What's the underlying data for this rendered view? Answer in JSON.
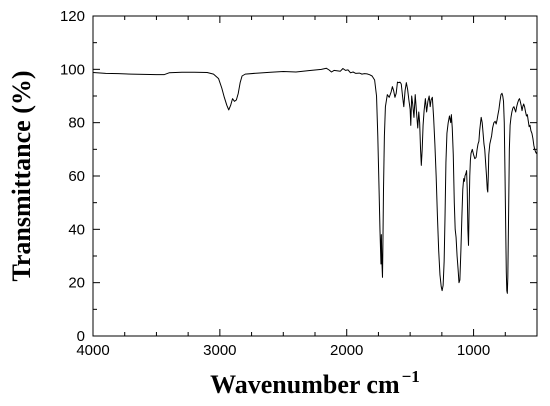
{
  "chart_data": {
    "type": "line",
    "title": "",
    "xlabel": "Wavenumber cm",
    "xlabel_superscript": "−1",
    "ylabel": "Transmittance (%)",
    "xlim": [
      4000,
      500
    ],
    "ylim": [
      0,
      120
    ],
    "x_reversed": true,
    "x_ticks": [
      4000,
      3000,
      2000,
      1000
    ],
    "x_tick_labels": [
      "4000",
      "3000",
      "2000",
      "1000"
    ],
    "x_minor_step": 250,
    "y_ticks": [
      0,
      20,
      40,
      60,
      80,
      100,
      120
    ],
    "y_tick_labels": [
      "0",
      "20",
      "40",
      "60",
      "80",
      "100",
      "120"
    ],
    "y_minor_step": 10,
    "grid": false,
    "legend": "none",
    "line_color": "#000000",
    "series": [
      {
        "points": [
          [
            4000,
            98.8
          ],
          [
            3900,
            98.5
          ],
          [
            3800,
            98.4
          ],
          [
            3700,
            98.2
          ],
          [
            3600,
            98.1
          ],
          [
            3500,
            98.0
          ],
          [
            3440,
            98.0
          ],
          [
            3400,
            98.7
          ],
          [
            3300,
            98.9
          ],
          [
            3200,
            98.9
          ],
          [
            3100,
            98.8
          ],
          [
            3050,
            98.2
          ],
          [
            3010,
            96.5
          ],
          [
            2985,
            93.0
          ],
          [
            2965,
            89.5
          ],
          [
            2945,
            86.5
          ],
          [
            2930,
            84.8
          ],
          [
            2915,
            86.5
          ],
          [
            2900,
            89.0
          ],
          [
            2885,
            88.0
          ],
          [
            2870,
            88.5
          ],
          [
            2855,
            91.0
          ],
          [
            2840,
            95.0
          ],
          [
            2825,
            97.5
          ],
          [
            2800,
            98.2
          ],
          [
            2700,
            98.6
          ],
          [
            2600,
            98.9
          ],
          [
            2500,
            99.2
          ],
          [
            2400,
            99.0
          ],
          [
            2300,
            99.5
          ],
          [
            2200,
            100.0
          ],
          [
            2160,
            100.4
          ],
          [
            2140,
            99.8
          ],
          [
            2120,
            99.0
          ],
          [
            2100,
            99.6
          ],
          [
            2050,
            99.3
          ],
          [
            2030,
            100.3
          ],
          [
            2010,
            99.6
          ],
          [
            1990,
            99.8
          ],
          [
            1970,
            98.7
          ],
          [
            1950,
            99.0
          ],
          [
            1930,
            98.5
          ],
          [
            1900,
            98.6
          ],
          [
            1880,
            98.2
          ],
          [
            1860,
            98.4
          ],
          [
            1840,
            98.3
          ],
          [
            1820,
            98.0
          ],
          [
            1800,
            97.5
          ],
          [
            1780,
            96.0
          ],
          [
            1765,
            90.0
          ],
          [
            1755,
            75.0
          ],
          [
            1745,
            55.0
          ],
          [
            1738,
            40.0
          ],
          [
            1730,
            27.0
          ],
          [
            1727,
            38.0
          ],
          [
            1722,
            27.0
          ],
          [
            1718,
            22.0
          ],
          [
            1715,
            33.0
          ],
          [
            1710,
            55.0
          ],
          [
            1703,
            75.0
          ],
          [
            1695,
            86.0
          ],
          [
            1680,
            90.5
          ],
          [
            1665,
            89.5
          ],
          [
            1650,
            91.5
          ],
          [
            1640,
            93.5
          ],
          [
            1630,
            92.0
          ],
          [
            1620,
            89.5
          ],
          [
            1610,
            91.0
          ],
          [
            1600,
            95.2
          ],
          [
            1590,
            95.0
          ],
          [
            1580,
            95.2
          ],
          [
            1570,
            94.5
          ],
          [
            1560,
            90.0
          ],
          [
            1550,
            86.0
          ],
          [
            1540,
            92.0
          ],
          [
            1530,
            95.0
          ],
          [
            1520,
            92.5
          ],
          [
            1510,
            88.5
          ],
          [
            1500,
            85.0
          ],
          [
            1495,
            79.0
          ],
          [
            1488,
            90.0
          ],
          [
            1480,
            87.0
          ],
          [
            1470,
            82.0
          ],
          [
            1460,
            90.5
          ],
          [
            1450,
            84.0
          ],
          [
            1440,
            78.0
          ],
          [
            1432,
            84.0
          ],
          [
            1425,
            80.0
          ],
          [
            1418,
            70.0
          ],
          [
            1412,
            64.0
          ],
          [
            1405,
            70.0
          ],
          [
            1398,
            79.0
          ],
          [
            1390,
            84.5
          ],
          [
            1380,
            89.0
          ],
          [
            1370,
            84.0
          ],
          [
            1360,
            88.0
          ],
          [
            1350,
            90.0
          ],
          [
            1342,
            86.0
          ],
          [
            1335,
            88.5
          ],
          [
            1325,
            89.5
          ],
          [
            1315,
            82.0
          ],
          [
            1305,
            72.0
          ],
          [
            1295,
            60.0
          ],
          [
            1285,
            45.0
          ],
          [
            1275,
            32.0
          ],
          [
            1265,
            23.0
          ],
          [
            1255,
            18.5
          ],
          [
            1248,
            17.0
          ],
          [
            1240,
            19.0
          ],
          [
            1232,
            28.0
          ],
          [
            1225,
            45.0
          ],
          [
            1218,
            65.0
          ],
          [
            1210,
            76.0
          ],
          [
            1200,
            80.0
          ],
          [
            1190,
            82.5
          ],
          [
            1180,
            80.0
          ],
          [
            1175,
            83.0
          ],
          [
            1168,
            78.0
          ],
          [
            1160,
            68.0
          ],
          [
            1152,
            50.0
          ],
          [
            1145,
            40.0
          ],
          [
            1138,
            37.0
          ],
          [
            1130,
            30.0
          ],
          [
            1122,
            25.0
          ],
          [
            1115,
            20.0
          ],
          [
            1108,
            21.0
          ],
          [
            1100,
            32.0
          ],
          [
            1092,
            45.0
          ],
          [
            1085,
            55.0
          ],
          [
            1078,
            59.0
          ],
          [
            1072,
            58.0
          ],
          [
            1068,
            60.0
          ],
          [
            1060,
            61.0
          ],
          [
            1055,
            62.0
          ],
          [
            1050,
            55.0
          ],
          [
            1045,
            40.0
          ],
          [
            1040,
            34.0
          ],
          [
            1036,
            45.0
          ],
          [
            1030,
            60.0
          ],
          [
            1025,
            66.0
          ],
          [
            1020,
            68.5
          ],
          [
            1010,
            70.0
          ],
          [
            1000,
            68.0
          ],
          [
            990,
            66.5
          ],
          [
            980,
            67.0
          ],
          [
            972,
            70.0
          ],
          [
            965,
            72.0
          ],
          [
            958,
            73.0
          ],
          [
            952,
            77.0
          ],
          [
            945,
            80.0
          ],
          [
            940,
            82.0
          ],
          [
            932,
            80.0
          ],
          [
            925,
            76.0
          ],
          [
            918,
            72.0
          ],
          [
            912,
            70.0
          ],
          [
            905,
            65.0
          ],
          [
            898,
            60.0
          ],
          [
            892,
            55.0
          ],
          [
            888,
            54.0
          ],
          [
            884,
            60.0
          ],
          [
            880,
            68.0
          ],
          [
            872,
            72.0
          ],
          [
            865,
            73.5
          ],
          [
            858,
            75.0
          ],
          [
            850,
            78.0
          ],
          [
            840,
            80.0
          ],
          [
            830,
            80.5
          ],
          [
            822,
            79.5
          ],
          [
            815,
            81.0
          ],
          [
            808,
            83.0
          ],
          [
            800,
            85.0
          ],
          [
            792,
            88.0
          ],
          [
            784,
            90.5
          ],
          [
            776,
            91.0
          ],
          [
            770,
            90.0
          ],
          [
            764,
            88.0
          ],
          [
            758,
            80.0
          ],
          [
            752,
            60.0
          ],
          [
            746,
            38.0
          ],
          [
            742,
            24.0
          ],
          [
            738,
            17.0
          ],
          [
            734,
            16.0
          ],
          [
            730,
            22.0
          ],
          [
            724,
            45.0
          ],
          [
            718,
            70.0
          ],
          [
            712,
            79.0
          ],
          [
            705,
            82.0
          ],
          [
            698,
            84.0
          ],
          [
            690,
            85.5
          ],
          [
            682,
            86.0
          ],
          [
            675,
            85.0
          ],
          [
            668,
            84.0
          ],
          [
            660,
            86.0
          ],
          [
            652,
            87.5
          ],
          [
            645,
            88.5
          ],
          [
            638,
            89.0
          ],
          [
            632,
            88.0
          ],
          [
            625,
            86.5
          ],
          [
            618,
            84.5
          ],
          [
            612,
            86.0
          ],
          [
            605,
            87.0
          ],
          [
            598,
            86.0
          ],
          [
            590,
            84.0
          ],
          [
            583,
            82.5
          ],
          [
            576,
            83.0
          ],
          [
            570,
            81.0
          ],
          [
            562,
            78.5
          ],
          [
            555,
            79.0
          ],
          [
            548,
            77.0
          ],
          [
            540,
            76.0
          ],
          [
            532,
            74.0
          ],
          [
            525,
            71.5
          ],
          [
            518,
            70.0
          ],
          [
            511,
            69.0
          ],
          [
            505,
            68.5
          ],
          [
            500,
            69.0
          ]
        ]
      }
    ]
  }
}
